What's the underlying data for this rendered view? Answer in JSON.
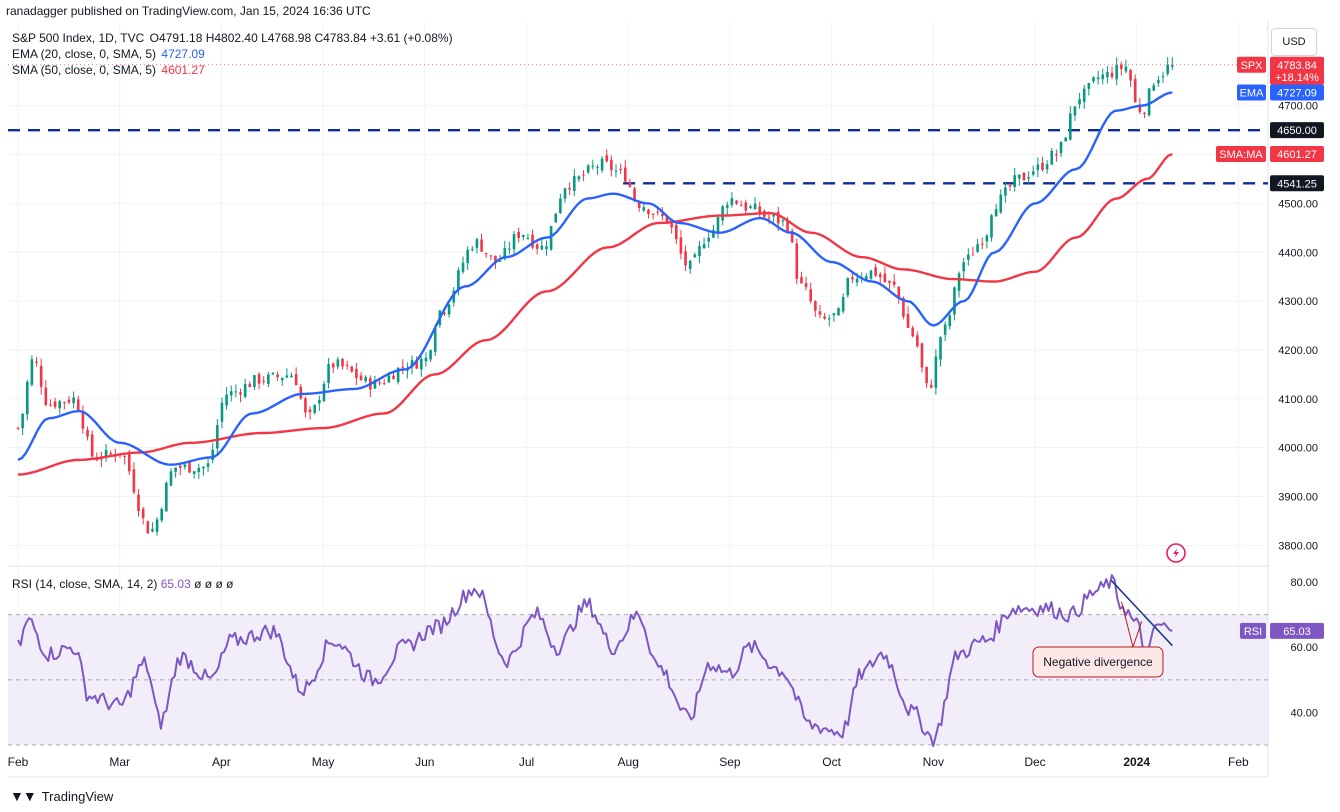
{
  "publisher": "ranadagger published on TradingView.com, Jan 15, 2024 16:36 UTC",
  "currency": "USD",
  "brand": "TradingView",
  "brand_icon": "tradingview-logo-icon",
  "legend": {
    "symbol": "S&P 500 Index, 1D, TVC",
    "ohlc": "O4791.18 H4802.40 L4768.98 C4783.84 +3.61 (+0.08%)",
    "ema_label": "EMA (20, close, 0, SMA, 5)",
    "ema_value": "4727.09",
    "sma_label": "SMA (50, close, 0, SMA, 5)",
    "sma_value": "4601.27",
    "rsi_label": "RSI (14, close, SMA, 14, 2)",
    "rsi_value": "65.03",
    "rsi_extra": "ø ø ø ø"
  },
  "colors": {
    "up": "#089981",
    "down": "#f23645",
    "ema": "#2962ff",
    "sma": "#f23645",
    "rsi": "#7e57c2",
    "rsi_band": "#ede7f6",
    "hline": "#0d2d9e",
    "axis_text": "#131722"
  },
  "chart_data": [
    {
      "type": "candlestick",
      "title": "S&P 500 Index, 1D, TVC",
      "x_ticks": [
        "Feb",
        "Mar",
        "Apr",
        "May",
        "Jun",
        "Jul",
        "Aug",
        "Sep",
        "Oct",
        "Nov",
        "Dec",
        "2024",
        "Feb"
      ],
      "y_ticks": [
        3800,
        3900,
        4000,
        4100,
        4200,
        4300,
        4400,
        4500,
        4600,
        4700
      ],
      "y_tick_labels": [
        "3800.00",
        "3900.00",
        "4000.00",
        "4100.00",
        "4200.00",
        "4300.00",
        "4400.00",
        "4500.00",
        "4600.00",
        "4700.00"
      ],
      "ylim": [
        3770,
        4810
      ],
      "anchors": [
        {
          "m": 0.0,
          "close": 4040
        },
        {
          "m": 0.15,
          "close": 4180
        },
        {
          "m": 0.3,
          "close": 4090
        },
        {
          "m": 0.55,
          "close": 4100
        },
        {
          "m": 0.75,
          "close": 3980
        },
        {
          "m": 1.0,
          "close": 3990
        },
        {
          "m": 1.3,
          "close": 3830
        },
        {
          "m": 1.55,
          "close": 3960
        },
        {
          "m": 1.85,
          "close": 3960
        },
        {
          "m": 2.05,
          "close": 4110
        },
        {
          "m": 2.4,
          "close": 4140
        },
        {
          "m": 2.7,
          "close": 4150
        },
        {
          "m": 2.85,
          "close": 4060
        },
        {
          "m": 3.1,
          "close": 4170
        },
        {
          "m": 3.5,
          "close": 4130
        },
        {
          "m": 3.85,
          "close": 4170
        },
        {
          "m": 4.0,
          "close": 4180
        },
        {
          "m": 4.15,
          "close": 4280
        },
        {
          "m": 4.5,
          "close": 4420
        },
        {
          "m": 4.7,
          "close": 4380
        },
        {
          "m": 4.95,
          "close": 4440
        },
        {
          "m": 5.15,
          "close": 4410
        },
        {
          "m": 5.4,
          "close": 4540
        },
        {
          "m": 5.75,
          "close": 4580
        },
        {
          "m": 5.95,
          "close": 4560
        },
        {
          "m": 6.1,
          "close": 4500
        },
        {
          "m": 6.35,
          "close": 4470
        },
        {
          "m": 6.6,
          "close": 4370
        },
        {
          "m": 6.8,
          "close": 4440
        },
        {
          "m": 7.0,
          "close": 4510
        },
        {
          "m": 7.2,
          "close": 4490
        },
        {
          "m": 7.4,
          "close": 4470
        },
        {
          "m": 7.55,
          "close": 4460
        },
        {
          "m": 7.7,
          "close": 4330
        },
        {
          "m": 7.9,
          "close": 4260
        },
        {
          "m": 8.05,
          "close": 4270
        },
        {
          "m": 8.2,
          "close": 4350
        },
        {
          "m": 8.4,
          "close": 4360
        },
        {
          "m": 8.6,
          "close": 4330
        },
        {
          "m": 8.8,
          "close": 4230
        },
        {
          "m": 8.95,
          "close": 4120
        },
        {
          "m": 9.1,
          "close": 4240
        },
        {
          "m": 9.3,
          "close": 4380
        },
        {
          "m": 9.5,
          "close": 4430
        },
        {
          "m": 9.6,
          "close": 4500
        },
        {
          "m": 9.85,
          "close": 4550
        },
        {
          "m": 10.0,
          "close": 4570
        },
        {
          "m": 10.2,
          "close": 4600
        },
        {
          "m": 10.45,
          "close": 4720
        },
        {
          "m": 10.65,
          "close": 4760
        },
        {
          "m": 10.9,
          "close": 4780
        },
        {
          "m": 11.0,
          "close": 4700
        },
        {
          "m": 11.05,
          "close": 4690
        },
        {
          "m": 11.2,
          "close": 4760
        },
        {
          "m": 11.35,
          "close": 4784
        }
      ],
      "ema_anchors": [
        {
          "m": 0.0,
          "v": 3975
        },
        {
          "m": 0.3,
          "v": 4060
        },
        {
          "m": 0.6,
          "v": 4075
        },
        {
          "m": 1.0,
          "v": 4010
        },
        {
          "m": 1.5,
          "v": 3965
        },
        {
          "m": 1.9,
          "v": 3980
        },
        {
          "m": 2.3,
          "v": 4070
        },
        {
          "m": 2.8,
          "v": 4110
        },
        {
          "m": 3.3,
          "v": 4120
        },
        {
          "m": 3.8,
          "v": 4160
        },
        {
          "m": 4.4,
          "v": 4330
        },
        {
          "m": 4.8,
          "v": 4390
        },
        {
          "m": 5.2,
          "v": 4430
        },
        {
          "m": 5.6,
          "v": 4510
        },
        {
          "m": 5.85,
          "v": 4520
        },
        {
          "m": 6.2,
          "v": 4500
        },
        {
          "m": 6.5,
          "v": 4460
        },
        {
          "m": 6.9,
          "v": 4440
        },
        {
          "m": 7.3,
          "v": 4470
        },
        {
          "m": 7.6,
          "v": 4440
        },
        {
          "m": 8.0,
          "v": 4380
        },
        {
          "m": 8.4,
          "v": 4340
        },
        {
          "m": 8.75,
          "v": 4300
        },
        {
          "m": 9.0,
          "v": 4250
        },
        {
          "m": 9.3,
          "v": 4300
        },
        {
          "m": 9.6,
          "v": 4400
        },
        {
          "m": 10.0,
          "v": 4500
        },
        {
          "m": 10.4,
          "v": 4570
        },
        {
          "m": 10.8,
          "v": 4690
        },
        {
          "m": 11.05,
          "v": 4700
        },
        {
          "m": 11.35,
          "v": 4727
        }
      ],
      "sma_anchors": [
        {
          "m": 0.0,
          "v": 3945
        },
        {
          "m": 0.6,
          "v": 3975
        },
        {
          "m": 1.2,
          "v": 3990
        },
        {
          "m": 1.7,
          "v": 4010
        },
        {
          "m": 2.4,
          "v": 4030
        },
        {
          "m": 3.0,
          "v": 4040
        },
        {
          "m": 3.6,
          "v": 4070
        },
        {
          "m": 4.1,
          "v": 4150
        },
        {
          "m": 4.6,
          "v": 4220
        },
        {
          "m": 5.2,
          "v": 4320
        },
        {
          "m": 5.8,
          "v": 4410
        },
        {
          "m": 6.3,
          "v": 4460
        },
        {
          "m": 6.9,
          "v": 4475
        },
        {
          "m": 7.4,
          "v": 4480
        },
        {
          "m": 7.8,
          "v": 4440
        },
        {
          "m": 8.3,
          "v": 4390
        },
        {
          "m": 8.7,
          "v": 4365
        },
        {
          "m": 9.2,
          "v": 4345
        },
        {
          "m": 9.6,
          "v": 4340
        },
        {
          "m": 10.0,
          "v": 4360
        },
        {
          "m": 10.4,
          "v": 4430
        },
        {
          "m": 10.8,
          "v": 4510
        },
        {
          "m": 11.1,
          "v": 4550
        },
        {
          "m": 11.35,
          "v": 4601
        }
      ],
      "horizontal_levels": [
        {
          "value": 4650,
          "label": "4650.00",
          "from_m": -0.1
        },
        {
          "value": 4541.25,
          "label": "4541.25",
          "from_m": 5.95
        }
      ],
      "price_tags": [
        {
          "label": "SPX",
          "value": 4783.84,
          "text": "4783.84",
          "sub": "+18.14%",
          "color": "#f23645"
        },
        {
          "label": "EMA",
          "value": 4727.09,
          "text": "4727.09",
          "color": "#2962ff"
        },
        {
          "label": "SMA:MA",
          "value": 4601.27,
          "text": "4601.27",
          "color": "#f23645"
        }
      ]
    },
    {
      "type": "line",
      "title": "RSI (14, close, SMA, 14, 2)",
      "y_ticks": [
        40,
        60,
        80
      ],
      "y_tick_labels": [
        "40.00",
        "60.00",
        "80.00"
      ],
      "ylim": [
        30,
        84
      ],
      "band": [
        30,
        70
      ],
      "mid": 50,
      "last": {
        "value": 65.03,
        "label": "RSI",
        "text": "65.03"
      },
      "anchors": [
        {
          "m": 0.0,
          "v": 60
        },
        {
          "m": 0.1,
          "v": 68
        },
        {
          "m": 0.3,
          "v": 58
        },
        {
          "m": 0.55,
          "v": 60
        },
        {
          "m": 0.7,
          "v": 45
        },
        {
          "m": 1.0,
          "v": 42
        },
        {
          "m": 1.25,
          "v": 55
        },
        {
          "m": 1.4,
          "v": 37
        },
        {
          "m": 1.6,
          "v": 57
        },
        {
          "m": 1.9,
          "v": 50
        },
        {
          "m": 2.1,
          "v": 62
        },
        {
          "m": 2.5,
          "v": 65
        },
        {
          "m": 2.8,
          "v": 47
        },
        {
          "m": 3.1,
          "v": 62
        },
        {
          "m": 3.5,
          "v": 50
        },
        {
          "m": 3.8,
          "v": 60
        },
        {
          "m": 4.1,
          "v": 66
        },
        {
          "m": 4.5,
          "v": 78
        },
        {
          "m": 4.8,
          "v": 56
        },
        {
          "m": 5.1,
          "v": 70
        },
        {
          "m": 5.3,
          "v": 60
        },
        {
          "m": 5.6,
          "v": 73
        },
        {
          "m": 5.85,
          "v": 60
        },
        {
          "m": 6.1,
          "v": 70
        },
        {
          "m": 6.3,
          "v": 54
        },
        {
          "m": 6.6,
          "v": 38
        },
        {
          "m": 6.8,
          "v": 55
        },
        {
          "m": 7.0,
          "v": 52
        },
        {
          "m": 7.2,
          "v": 60
        },
        {
          "m": 7.5,
          "v": 53
        },
        {
          "m": 7.8,
          "v": 36
        },
        {
          "m": 8.1,
          "v": 34
        },
        {
          "m": 8.3,
          "v": 52
        },
        {
          "m": 8.5,
          "v": 58
        },
        {
          "m": 8.8,
          "v": 40
        },
        {
          "m": 9.0,
          "v": 32
        },
        {
          "m": 9.25,
          "v": 58
        },
        {
          "m": 9.5,
          "v": 62
        },
        {
          "m": 9.8,
          "v": 72
        },
        {
          "m": 10.1,
          "v": 72
        },
        {
          "m": 10.35,
          "v": 70
        },
        {
          "m": 10.6,
          "v": 77
        },
        {
          "m": 10.75,
          "v": 80
        },
        {
          "m": 10.85,
          "v": 73
        },
        {
          "m": 11.0,
          "v": 67
        },
        {
          "m": 11.1,
          "v": 57
        },
        {
          "m": 11.2,
          "v": 67
        },
        {
          "m": 11.35,
          "v": 65
        }
      ],
      "trendline": [
        {
          "m": 10.75,
          "v": 80.5
        },
        {
          "m": 11.35,
          "v": 60.5
        }
      ],
      "annotation": {
        "text": "Negative divergence",
        "m": 10.57,
        "v": 57
      }
    }
  ]
}
